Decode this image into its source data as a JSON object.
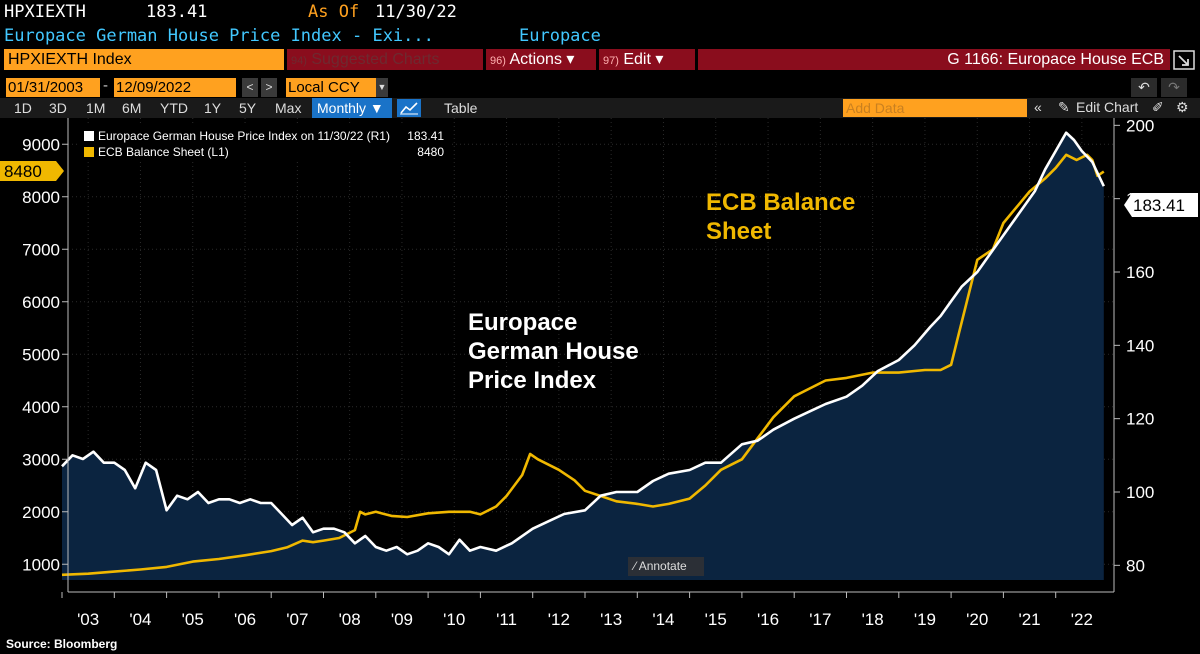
{
  "header": {
    "ticker": "HPXIEXTH",
    "last_price": "183.41",
    "as_of_label": "As Of",
    "as_of_date": "11/30/22",
    "description": "Europace German House Price Index - Exi...",
    "source_name": "Europace"
  },
  "toolbar": {
    "security": "HPXIEXTH Index",
    "suggested_num": "94)",
    "suggested_label": "Suggested Charts",
    "actions_num": "96)",
    "actions_label": "Actions ▾",
    "edit_num": "97)",
    "edit_label": "Edit ▾",
    "chart_title": "G 1166: Europace House ECB"
  },
  "dates": {
    "start": "01/31/2003",
    "end": "12/09/2022",
    "dash": "-",
    "currency": "Local CCY"
  },
  "periods": [
    "1D",
    "3D",
    "1M",
    "6M",
    "YTD",
    "1Y",
    "5Y",
    "Max"
  ],
  "frequency": "Monthly ▼",
  "table_label": "Table",
  "add_data_placeholder": "Add Data",
  "edit_chart_label": "Edit Chart",
  "annotate_label": "Annotate",
  "source": "Source: Bloomberg",
  "colors": {
    "house_price": "#ffffff",
    "ecb": "#f0b800",
    "area": "#0b2440",
    "accent_orange": "#ffa11f",
    "bar_red": "#8a0d1d"
  },
  "chart_data": {
    "type": "line",
    "legend": [
      {
        "name": "Europace German House Price Index on 11/30/22 (R1)",
        "value": "183.41"
      },
      {
        "name": "ECB Balance Sheet (L1)",
        "value": "8480"
      }
    ],
    "annotations": {
      "house_label": "Europace\nGerman House\nPrice Index",
      "ecb_label": "ECB Balance\nSheet"
    },
    "left_axis": {
      "ylim": [
        700,
        9500
      ],
      "ticks": [
        1000,
        2000,
        3000,
        4000,
        5000,
        6000,
        7000,
        8000,
        9000
      ],
      "highlight": "8480"
    },
    "right_axis": {
      "ylim": [
        76,
        202
      ],
      "ticks": [
        80,
        100,
        120,
        140,
        160,
        180,
        200
      ],
      "highlight": "183.41"
    },
    "xlim": [
      2003.0,
      2023.0
    ],
    "x_tick_labels": [
      "'03",
      "'04",
      "'05",
      "'06",
      "'07",
      "'08",
      "'09",
      "'10",
      "'11",
      "'12",
      "'13",
      "'14",
      "'15",
      "'16",
      "'17",
      "'18",
      "'19",
      "'20",
      "'21",
      "'22"
    ],
    "series": [
      {
        "name": "Europace German House Price Index",
        "axis": "right",
        "x": [
          2003.0,
          2003.2,
          2003.4,
          2003.6,
          2003.8,
          2004.0,
          2004.2,
          2004.4,
          2004.6,
          2004.8,
          2005.0,
          2005.2,
          2005.4,
          2005.6,
          2005.8,
          2006.0,
          2006.2,
          2006.4,
          2006.6,
          2006.8,
          2007.0,
          2007.2,
          2007.4,
          2007.6,
          2007.8,
          2008.0,
          2008.2,
          2008.4,
          2008.6,
          2008.8,
          2009.0,
          2009.2,
          2009.4,
          2009.6,
          2009.8,
          2010.0,
          2010.2,
          2010.4,
          2010.6,
          2010.8,
          2011.0,
          2011.3,
          2011.6,
          2012.0,
          2012.3,
          2012.6,
          2013.0,
          2013.3,
          2013.6,
          2014.0,
          2014.3,
          2014.6,
          2015.0,
          2015.3,
          2015.6,
          2016.0,
          2016.3,
          2016.6,
          2017.0,
          2017.3,
          2017.6,
          2018.0,
          2018.3,
          2018.6,
          2019.0,
          2019.3,
          2019.6,
          2019.8,
          2020.0,
          2020.2,
          2020.5,
          2020.8,
          2021.0,
          2021.3,
          2021.6,
          2021.8,
          2022.0,
          2022.2,
          2022.35,
          2022.5,
          2022.7,
          2022.92
        ],
        "values": [
          107,
          110,
          109,
          111,
          108,
          108,
          106,
          101,
          108,
          106,
          95,
          99,
          98,
          100,
          97,
          98,
          98,
          97,
          98,
          97,
          97,
          94,
          91,
          93,
          89,
          90,
          90,
          89,
          86,
          88,
          85,
          84,
          85,
          83,
          84,
          86,
          85,
          83,
          87,
          84,
          85,
          84,
          86,
          90,
          92,
          94,
          95,
          99,
          100,
          100,
          103,
          105,
          106,
          108,
          108,
          113,
          114,
          117,
          120,
          122,
          124,
          126,
          129,
          133,
          136,
          140,
          145,
          148,
          152,
          156,
          160,
          166,
          170,
          176,
          182,
          188,
          193,
          198,
          196,
          193,
          190,
          183.41
        ]
      },
      {
        "name": "ECB Balance Sheet",
        "axis": "left",
        "x": [
          2003.0,
          2003.5,
          2004.0,
          2004.5,
          2005.0,
          2005.5,
          2006.0,
          2006.5,
          2007.0,
          2007.3,
          2007.6,
          2007.8,
          2008.0,
          2008.3,
          2008.6,
          2008.7,
          2008.8,
          2009.0,
          2009.3,
          2009.6,
          2010.0,
          2010.4,
          2010.8,
          2011.0,
          2011.3,
          2011.5,
          2011.8,
          2011.95,
          2012.1,
          2012.5,
          2012.8,
          2013.0,
          2013.3,
          2013.6,
          2014.0,
          2014.3,
          2014.6,
          2015.0,
          2015.3,
          2015.6,
          2016.0,
          2016.3,
          2016.6,
          2016.8,
          2017.0,
          2017.3,
          2017.6,
          2018.0,
          2018.5,
          2019.0,
          2019.5,
          2019.8,
          2020.0,
          2020.15,
          2020.3,
          2020.5,
          2020.8,
          2021.0,
          2021.5,
          2021.8,
          2022.0,
          2022.2,
          2022.4,
          2022.6,
          2022.7,
          2022.8,
          2022.92
        ],
        "values": [
          800,
          820,
          860,
          900,
          950,
          1050,
          1100,
          1170,
          1250,
          1320,
          1450,
          1420,
          1450,
          1500,
          1650,
          2000,
          1950,
          2000,
          1920,
          1900,
          1970,
          2000,
          2000,
          1950,
          2100,
          2300,
          2700,
          3100,
          3000,
          2800,
          2600,
          2400,
          2300,
          2200,
          2150,
          2100,
          2150,
          2250,
          2500,
          2800,
          3000,
          3400,
          3800,
          4000,
          4200,
          4350,
          4500,
          4550,
          4650,
          4650,
          4700,
          4700,
          4800,
          5400,
          6000,
          6800,
          7000,
          7500,
          8100,
          8350,
          8550,
          8800,
          8700,
          8800,
          8700,
          8400,
          8480
        ]
      }
    ]
  }
}
